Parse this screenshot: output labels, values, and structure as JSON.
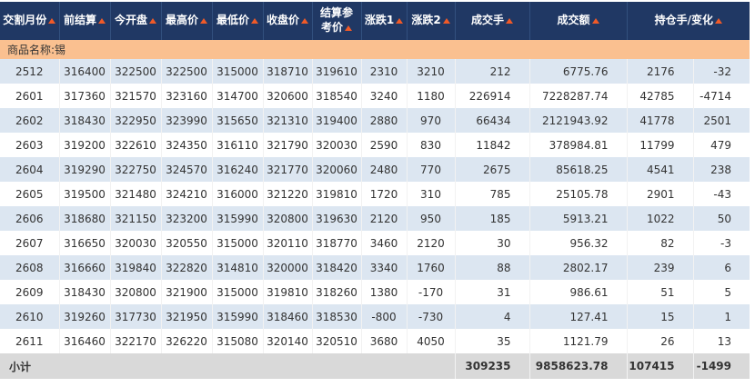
{
  "table": {
    "headers": [
      {
        "label": "交割月份"
      },
      {
        "label": "前结算"
      },
      {
        "label": "今开盘"
      },
      {
        "label": "最高价"
      },
      {
        "label": "最低价"
      },
      {
        "label": "收盘价"
      },
      {
        "label": "结算参考价"
      },
      {
        "label": "涨跌1"
      },
      {
        "label": "涨跌2"
      },
      {
        "label": "成交手"
      },
      {
        "label": "成交额"
      },
      {
        "label": "持仓手/变化"
      }
    ],
    "product_label": "商品名称:锡",
    "rows": [
      [
        "2512",
        "316400",
        "322500",
        "322500",
        "315000",
        "318710",
        "319610",
        "2310",
        "3210",
        "212",
        "6775.76",
        "2176",
        "-32"
      ],
      [
        "2601",
        "317360",
        "321570",
        "323160",
        "314700",
        "320600",
        "318540",
        "3240",
        "1180",
        "226914",
        "7228287.74",
        "42785",
        "-4714"
      ],
      [
        "2602",
        "318430",
        "322950",
        "323990",
        "315650",
        "321310",
        "319400",
        "2880",
        "970",
        "66434",
        "2121943.92",
        "41778",
        "2501"
      ],
      [
        "2603",
        "319200",
        "322610",
        "324350",
        "316110",
        "321790",
        "320030",
        "2590",
        "830",
        "11842",
        "378984.81",
        "11799",
        "479"
      ],
      [
        "2604",
        "319290",
        "322750",
        "324570",
        "316240",
        "321770",
        "320060",
        "2480",
        "770",
        "2675",
        "85618.25",
        "4541",
        "238"
      ],
      [
        "2605",
        "319500",
        "321480",
        "324210",
        "316000",
        "321220",
        "319810",
        "1720",
        "310",
        "785",
        "25105.78",
        "2901",
        "-43"
      ],
      [
        "2606",
        "318680",
        "321150",
        "323200",
        "315990",
        "320800",
        "319630",
        "2120",
        "950",
        "185",
        "5913.21",
        "1022",
        "50"
      ],
      [
        "2607",
        "316650",
        "320030",
        "320550",
        "315000",
        "320110",
        "318770",
        "3460",
        "2120",
        "30",
        "956.32",
        "82",
        "-3"
      ],
      [
        "2608",
        "316660",
        "319840",
        "322820",
        "314810",
        "320000",
        "318420",
        "3340",
        "1760",
        "88",
        "2802.17",
        "239",
        "6"
      ],
      [
        "2609",
        "318430",
        "320800",
        "321900",
        "315000",
        "319810",
        "318260",
        "1380",
        "-170",
        "31",
        "986.61",
        "51",
        "5"
      ],
      [
        "2610",
        "319260",
        "317730",
        "321950",
        "315990",
        "318460",
        "318530",
        "-800",
        "-730",
        "4",
        "127.41",
        "15",
        "1"
      ],
      [
        "2611",
        "316460",
        "322170",
        "326220",
        "315080",
        "320140",
        "320510",
        "3680",
        "4050",
        "35",
        "1121.79",
        "26",
        "13"
      ]
    ],
    "subtotal": {
      "label": "小计",
      "volume": "309235",
      "turnover": "9858623.78",
      "open_interest": "107415",
      "oi_change": "-1499"
    }
  },
  "colors": {
    "header_bg": "#203864",
    "sort_icon": "#F05A28",
    "product_row_bg": "#FAC090",
    "alt_row_bg": "#DCE6F1",
    "subtotal_bg": "#D9D9D9",
    "text": "#333333"
  }
}
